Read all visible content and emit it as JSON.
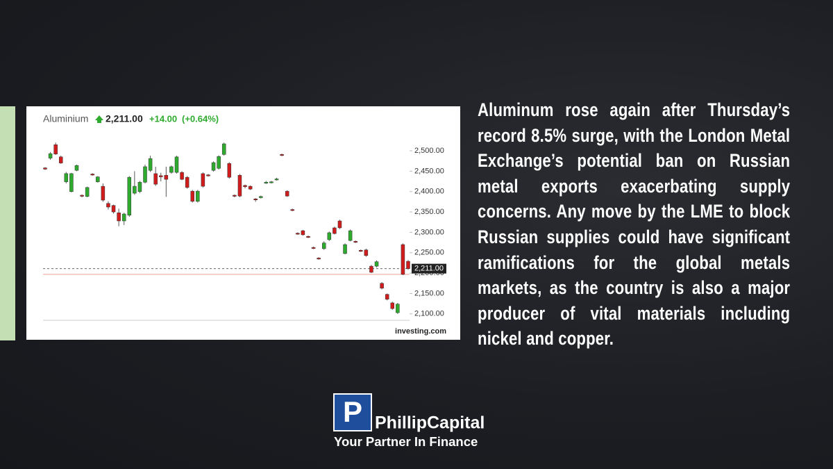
{
  "chart_data": {
    "type": "candlestick",
    "title": "Aluminium",
    "price": "2,211.00",
    "change": "+14.00",
    "change_pct": "(+0.64%)",
    "source": "investing.com",
    "up_color": "#2eab2e",
    "down_color": "#d01c1c",
    "open": [
      2458,
      2482,
      2515,
      2485,
      2424,
      2400,
      2452,
      2391,
      2388,
      2443,
      2424,
      2413,
      2371,
      2366,
      2348,
      2328,
      2342,
      2396,
      2400,
      2423,
      2452,
      2444,
      2439,
      2440,
      2447,
      2447,
      2447,
      2435,
      2401,
      2376,
      2444,
      2441,
      2452,
      2457,
      2491,
      2469,
      2391,
      2440,
      2415,
      2413,
      2382,
      2385,
      2421,
      2422,
      2429,
      2491,
      2401,
      2356,
      2298,
      2304,
      2290,
      2263,
      2237,
      2260,
      2282,
      2311,
      2328,
      2248,
      2280,
      2278,
      2256,
      2257,
      2217,
      2217,
      2175,
      2148,
      2127,
      2103,
      2270,
      2229
    ],
    "high": [
      2460,
      2497,
      2520,
      2488,
      2448,
      2446,
      2466,
      2393,
      2412,
      2445,
      2438,
      2420,
      2376,
      2368,
      2358,
      2348,
      2438,
      2450,
      2426,
      2466,
      2488,
      2461,
      2446,
      2461,
      2464,
      2488,
      2450,
      2438,
      2404,
      2404,
      2447,
      2443,
      2474,
      2489,
      2520,
      2472,
      2393,
      2443,
      2417,
      2415,
      2384,
      2390,
      2426,
      2426,
      2434,
      2493,
      2403,
      2358,
      2300,
      2306,
      2292,
      2265,
      2239,
      2278,
      2302,
      2314,
      2331,
      2273,
      2307,
      2280,
      2258,
      2260,
      2220,
      2231,
      2178,
      2150,
      2130,
      2127,
      2273,
      2232
    ],
    "low": [
      2453,
      2478,
      2490,
      2468,
      2420,
      2398,
      2450,
      2386,
      2386,
      2439,
      2422,
      2375,
      2356,
      2346,
      2315,
      2318,
      2338,
      2392,
      2396,
      2420,
      2448,
      2414,
      2425,
      2387,
      2444,
      2444,
      2428,
      2407,
      2373,
      2373,
      2410,
      2437,
      2449,
      2454,
      2488,
      2432,
      2386,
      2386,
      2408,
      2404,
      2375,
      2383,
      2419,
      2420,
      2427,
      2487,
      2387,
      2352,
      2294,
      2292,
      2286,
      2259,
      2233,
      2257,
      2279,
      2295,
      2308,
      2246,
      2278,
      2274,
      2252,
      2240,
      2200,
      2214,
      2160,
      2133,
      2110,
      2100,
      2195,
      2208
    ],
    "close": [
      2455,
      2493,
      2492,
      2470,
      2444,
      2444,
      2464,
      2389,
      2410,
      2441,
      2436,
      2379,
      2362,
      2350,
      2328,
      2345,
      2435,
      2413,
      2423,
      2461,
      2481,
      2418,
      2436,
      2430,
      2461,
      2485,
      2430,
      2410,
      2376,
      2401,
      2413,
      2439,
      2471,
      2486,
      2517,
      2435,
      2389,
      2389,
      2412,
      2406,
      2380,
      2388,
      2423,
      2424,
      2431,
      2489,
      2389,
      2354,
      2296,
      2294,
      2288,
      2261,
      2235,
      2274,
      2299,
      2297,
      2311,
      2270,
      2304,
      2276,
      2254,
      2243,
      2202,
      2228,
      2163,
      2136,
      2113,
      2124,
      2197,
      2211
    ],
    "ylim": [
      2086,
      2529
    ],
    "yticks": [
      {
        "value": 2100,
        "label": "2,100.00"
      },
      {
        "value": 2150,
        "label": "2,150.00"
      },
      {
        "value": 2200,
        "label": "2,200.00"
      },
      {
        "value": 2250,
        "label": "2,250.00"
      },
      {
        "value": 2300,
        "label": "2,300.00"
      },
      {
        "value": 2350,
        "label": "2,350.00"
      },
      {
        "value": 2400,
        "label": "2,400.00"
      },
      {
        "value": 2450,
        "label": "2,450.00"
      },
      {
        "value": 2500,
        "label": "2,500.00"
      }
    ],
    "last_price": {
      "value": 2211,
      "label": "2,211.00"
    },
    "prev_close": 2197
  },
  "text": {
    "paragraph": "Aluminum rose again after Thursday’s record 8.5% surge, with the London Metal Exchange’s potential ban on Russian metal exports exacerbating supply concerns. Any move by the LME to block Russian supplies could have significant ramifications for the global metals markets, as the country is also a major producer of vital materials including nickel and copper."
  },
  "logo": {
    "letter": "P",
    "name": "PhillipCapital",
    "tagline": "Your Partner In Finance"
  }
}
